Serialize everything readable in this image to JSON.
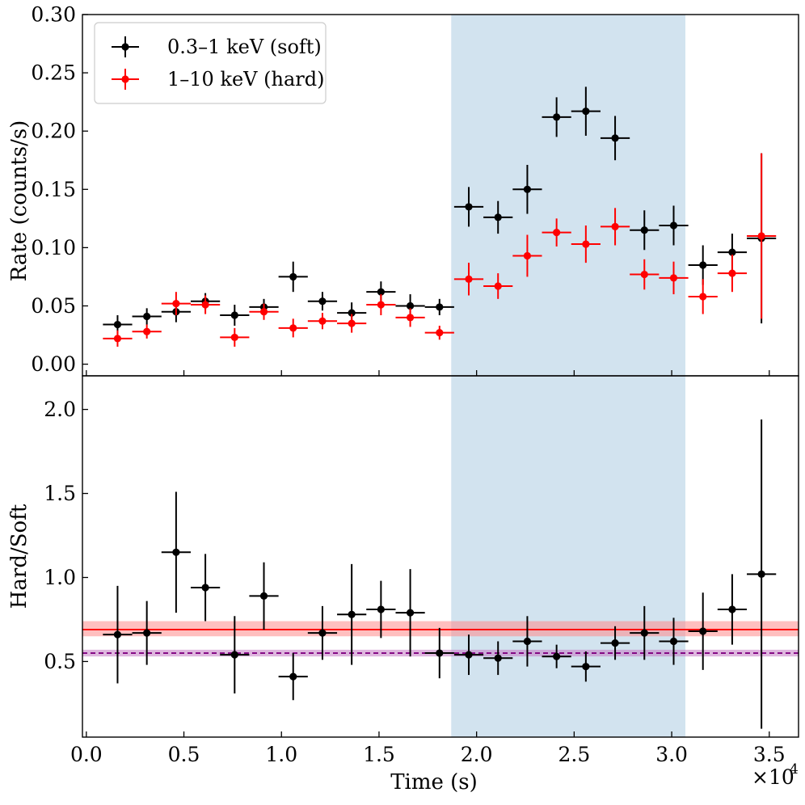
{
  "chart_data": [
    {
      "type": "scatter",
      "panel": "top",
      "title": "",
      "xlabel": "",
      "ylabel": "Rate (counts/s)",
      "xlim": [
        -200,
        36500
      ],
      "ylim": [
        -0.01,
        0.3
      ],
      "yticks": [
        0.0,
        0.05,
        0.1,
        0.15,
        0.2,
        0.25,
        0.3
      ],
      "ytick_labels": [
        "0.00",
        "0.05",
        "0.10",
        "0.15",
        "0.20",
        "0.25",
        "0.30"
      ],
      "shaded_interval": [
        18700,
        30700
      ],
      "legend_position": "top-left",
      "series": [
        {
          "name": "0.3–1 keV (soft)",
          "color": "#000000",
          "x": [
            1600,
            3100,
            4600,
            6100,
            7600,
            9100,
            10600,
            12100,
            13600,
            15100,
            16600,
            18100,
            19600,
            21100,
            22600,
            24100,
            25600,
            27100,
            28600,
            30100,
            31600,
            33100,
            34600
          ],
          "xerr": 750,
          "y": [
            0.034,
            0.041,
            0.045,
            0.054,
            0.042,
            0.049,
            0.075,
            0.054,
            0.044,
            0.062,
            0.05,
            0.049,
            0.135,
            0.126,
            0.15,
            0.212,
            0.217,
            0.194,
            0.115,
            0.119,
            0.085,
            0.096,
            0.108
          ],
          "yerr": [
            0.008,
            0.007,
            0.009,
            0.007,
            0.009,
            0.007,
            0.013,
            0.008,
            0.009,
            0.009,
            0.01,
            0.007,
            0.017,
            0.014,
            0.021,
            0.017,
            0.021,
            0.019,
            0.017,
            0.017,
            0.017,
            0.016,
            0.073
          ]
        },
        {
          "name": "1–10 keV (hard)",
          "color": "#ff0000",
          "x": [
            1600,
            3100,
            4600,
            6100,
            7600,
            9100,
            10600,
            12100,
            13600,
            15100,
            16600,
            18100,
            19600,
            21100,
            22600,
            24100,
            25600,
            27100,
            28600,
            30100,
            31600,
            33100,
            34600
          ],
          "xerr": 750,
          "y": [
            0.022,
            0.028,
            0.052,
            0.051,
            0.023,
            0.045,
            0.031,
            0.037,
            0.035,
            0.051,
            0.04,
            0.027,
            0.073,
            0.067,
            0.093,
            0.113,
            0.103,
            0.118,
            0.077,
            0.074,
            0.058,
            0.078,
            0.11
          ],
          "yerr": [
            0.007,
            0.006,
            0.01,
            0.008,
            0.008,
            0.007,
            0.008,
            0.007,
            0.008,
            0.009,
            0.008,
            0.006,
            0.014,
            0.011,
            0.018,
            0.012,
            0.016,
            0.016,
            0.013,
            0.014,
            0.015,
            0.016,
            0.071
          ]
        }
      ]
    },
    {
      "type": "scatter",
      "panel": "bottom",
      "title": "",
      "xlabel": "Time (s)",
      "ylabel": "Hard/Soft",
      "xlim": [
        -200,
        36500
      ],
      "ylim": [
        0.05,
        2.2
      ],
      "xticks": [
        0,
        5000,
        10000,
        15000,
        20000,
        25000,
        30000,
        35000
      ],
      "xtick_labels": [
        "0.0",
        "0.5",
        "1.0",
        "1.5",
        "2.0",
        "2.5",
        "3.0",
        "3.5"
      ],
      "x_multiplier": "×10",
      "x_multiplier_exp": "4",
      "yticks": [
        0.5,
        1.0,
        1.5,
        2.0
      ],
      "ytick_labels": [
        "0.5",
        "1.0",
        "1.5",
        "2.0"
      ],
      "shaded_interval": [
        18700,
        30700
      ],
      "hlines": [
        {
          "y": 0.69,
          "band": [
            0.65,
            0.74
          ],
          "color": "#ff0000",
          "style": "solid",
          "band_color": "#ff8a8a"
        },
        {
          "y": 0.55,
          "band": [
            0.53,
            0.57
          ],
          "color": "#800080",
          "style": "dashed",
          "band_color": "#c37cc3"
        }
      ],
      "series": [
        {
          "name": "Hard/Soft",
          "color": "#000000",
          "x": [
            1600,
            3100,
            4600,
            6100,
            7600,
            9100,
            10600,
            12100,
            13600,
            15100,
            16600,
            18100,
            19600,
            21100,
            22600,
            24100,
            25600,
            27100,
            28600,
            30100,
            31600,
            33100,
            34600
          ],
          "xerr": 750,
          "y": [
            0.66,
            0.67,
            1.15,
            0.94,
            0.54,
            0.89,
            0.41,
            0.67,
            0.78,
            0.81,
            0.79,
            0.55,
            0.54,
            0.52,
            0.62,
            0.53,
            0.47,
            0.61,
            0.67,
            0.62,
            0.68,
            0.81,
            1.02
          ],
          "yerr": [
            0.29,
            0.19,
            0.36,
            0.2,
            0.23,
            0.2,
            0.14,
            0.16,
            0.3,
            0.17,
            0.26,
            0.15,
            0.12,
            0.1,
            0.15,
            0.07,
            0.09,
            0.1,
            0.16,
            0.14,
            0.23,
            0.21,
            0.92
          ]
        }
      ]
    }
  ]
}
